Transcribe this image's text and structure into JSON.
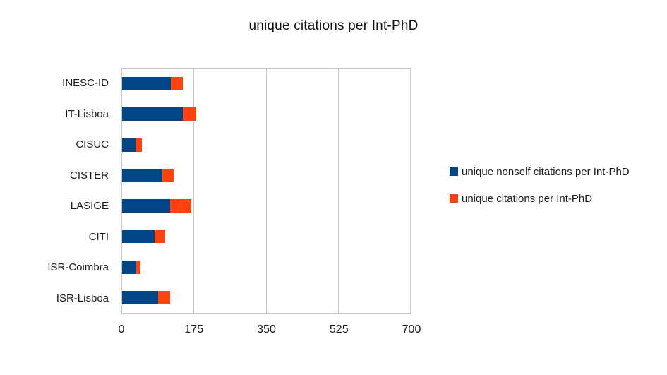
{
  "title": "unique citations per Int-PhD",
  "colors": {
    "nonself_blue": "#004586",
    "citations_orange": "#FF420E",
    "gridline_gray": "#C6C6C6",
    "text": "#1A1A1A"
  },
  "legend": {
    "items": [
      {
        "label": "unique nonself citations per Int-PhD",
        "color": "#004586",
        "swatch": "blue-square-icon"
      },
      {
        "label": "unique citations per Int-PhD",
        "color": "#FF420E",
        "swatch": "orange-square-icon"
      }
    ]
  },
  "chart_data": {
    "type": "bar",
    "orientation": "horizontal",
    "stacked": true,
    "title": "unique citations per Int-PhD",
    "categories": [
      "INESC-ID",
      "IT-Lisboa",
      "CISUC",
      "CISTER",
      "LASIGE",
      "CITI",
      "ISR-Coimbra",
      "ISR-Lisboa"
    ],
    "series": [
      {
        "name": "unique nonself citations per Int-PhD",
        "color": "#004586",
        "values": [
          118,
          148,
          32,
          98,
          116,
          79,
          35,
          87
        ]
      },
      {
        "name": "unique citations per Int-PhD",
        "color": "#FF420E",
        "values": [
          30,
          31,
          16,
          27,
          51,
          26,
          9,
          30
        ],
        "totals": [
          148,
          179,
          48,
          125,
          167,
          105,
          44,
          117
        ]
      }
    ],
    "xlabel": "",
    "ylabel": "",
    "xlim": [
      0,
      700
    ],
    "xticks": [
      0,
      175,
      350,
      525,
      700
    ],
    "grid": "vertical",
    "legend_position": "right"
  }
}
